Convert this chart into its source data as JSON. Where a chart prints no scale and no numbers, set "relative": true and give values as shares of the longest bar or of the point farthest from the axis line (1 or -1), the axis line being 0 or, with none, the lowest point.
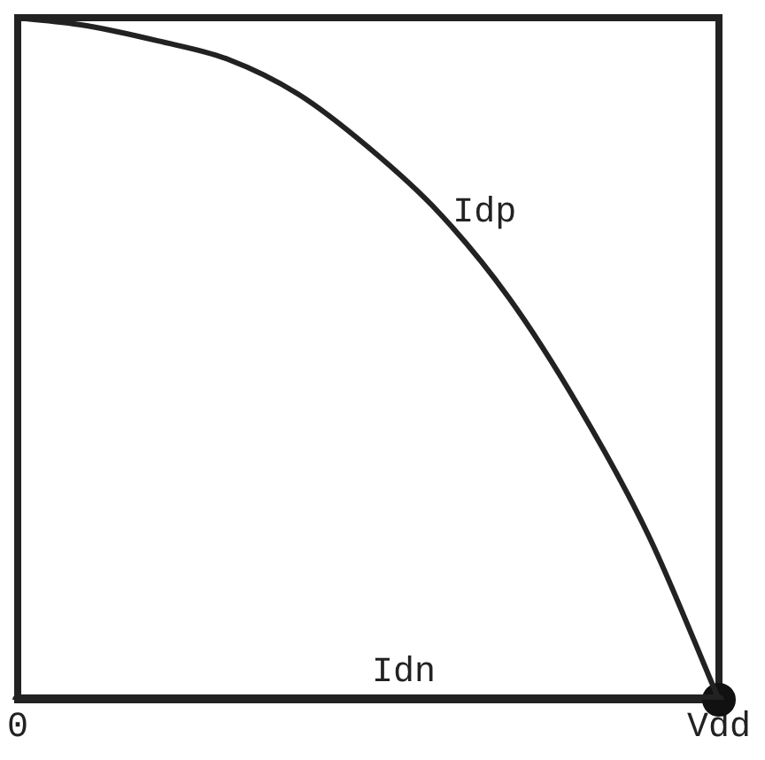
{
  "chart_data": {
    "type": "line",
    "relative": true,
    "categories": [
      "0",
      null,
      null,
      null,
      null,
      null,
      null,
      null,
      null,
      null,
      "Vdd"
    ],
    "series": [
      {
        "name": "Idp",
        "color": "#222222",
        "values": [
          1,
          0.988,
          0.966,
          0.939,
          0.888,
          0.81,
          0.715,
          0.59,
          0.43,
          0.24,
          0
        ]
      },
      {
        "name": "Idn",
        "color": "#222222",
        "values": [
          0,
          0,
          0,
          0,
          0,
          0,
          0,
          0,
          0,
          0,
          0
        ]
      },
      {
        "type": "scatter",
        "color": "#111111",
        "values": [
          null,
          null,
          null,
          null,
          null,
          null,
          null,
          null,
          null,
          null,
          0
        ],
        "marker": "circle"
      }
    ],
    "grid": false,
    "legend": false,
    "tick_labels": "x",
    "marker": "none",
    "line_style": "solid"
  }
}
